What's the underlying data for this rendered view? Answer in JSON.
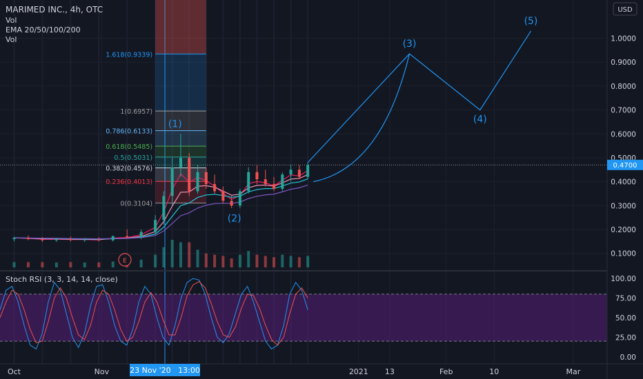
{
  "header": {
    "symbol_title": "MARIMED INC., 4h, OTC",
    "indicators": [
      "Vol",
      "EMA 20/50/100/200",
      "Vol"
    ],
    "currency": "USD"
  },
  "osc_title": "Stoch RSI (3, 3, 14, 14, close)",
  "colors": {
    "background": "#131722",
    "up": "#26a69a",
    "down": "#ef5350",
    "crosshair": "#2196f3",
    "price_tag": "#2196f3",
    "stoch_band": "#7b1fa2",
    "stoch_k": "#2196f3",
    "stoch_d": "#ef5350",
    "elliott": "#2196f3"
  },
  "price_tag": "0.4700",
  "date_tag": "23 Nov '20   13:00",
  "event_marker": "E",
  "chart_data": [
    {
      "type": "candlestick",
      "title": "MARIMED INC., 4h, OTC",
      "y_axis": {
        "ticks": [
          "1.0000",
          "0.9000",
          "0.8000",
          "0.7000",
          "0.6000",
          "0.5000",
          "0.4000",
          "0.3000",
          "0.2000",
          "0.1000"
        ],
        "tick_values": [
          1.0,
          0.9,
          0.8,
          0.7,
          0.6,
          0.5,
          0.4,
          0.3,
          0.2,
          0.1
        ],
        "range": [
          0.03,
          1.16
        ]
      },
      "x_axis": {
        "ticks": [
          "Oct",
          "Nov",
          "2021",
          "13",
          "Feb",
          "10",
          "Mar"
        ],
        "tick_days": [
          0,
          31,
          122,
          133,
          153,
          170,
          198
        ],
        "unit": "days from Oct 1 2020",
        "range": [
          -5,
          210
        ]
      },
      "last_price": 0.47,
      "fibonacci": [
        {
          "label": "1.618(0.9339)",
          "value": 0.9339,
          "color": "#2196f3"
        },
        {
          "label": "1(0.6957)",
          "value": 0.6957,
          "color": "#9e9e9e"
        },
        {
          "label": "0.786(0.6133)",
          "value": 0.6133,
          "color": "#64b5f6"
        },
        {
          "label": "0.618(0.5485)",
          "value": 0.5485,
          "color": "#4caf50"
        },
        {
          "label": "0.5(0.5031)",
          "value": 0.5031,
          "color": "#26a69a"
        },
        {
          "label": "0.382(0.4576)",
          "value": 0.4576,
          "color": "#d1d4dc"
        },
        {
          "label": "0.236(0.4013)",
          "value": 0.4013,
          "color": "#f23645"
        },
        {
          "label": "0(0.3104)",
          "value": 0.3104,
          "color": "#9e9e9e"
        }
      ],
      "elliott_waves": [
        {
          "label": "(1)",
          "day": 57,
          "price": 0.6
        },
        {
          "label": "(2)",
          "day": 78,
          "price": 0.285
        },
        {
          "label": "(3)",
          "day": 140,
          "price": 0.935
        },
        {
          "label": "(4)",
          "day": 165,
          "price": 0.7
        },
        {
          "label": "(5)",
          "day": 183,
          "price": 1.03
        }
      ],
      "ohlc": [
        {
          "day": 0,
          "o": 0.16,
          "h": 0.17,
          "l": 0.15,
          "c": 0.165
        },
        {
          "day": 5,
          "o": 0.165,
          "h": 0.175,
          "l": 0.155,
          "c": 0.16
        },
        {
          "day": 10,
          "o": 0.16,
          "h": 0.168,
          "l": 0.148,
          "c": 0.155
        },
        {
          "day": 15,
          "o": 0.155,
          "h": 0.165,
          "l": 0.148,
          "c": 0.16
        },
        {
          "day": 20,
          "o": 0.16,
          "h": 0.17,
          "l": 0.15,
          "c": 0.156
        },
        {
          "day": 25,
          "o": 0.156,
          "h": 0.165,
          "l": 0.148,
          "c": 0.158
        },
        {
          "day": 30,
          "o": 0.158,
          "h": 0.168,
          "l": 0.15,
          "c": 0.155
        },
        {
          "day": 35,
          "o": 0.155,
          "h": 0.175,
          "l": 0.15,
          "c": 0.172
        },
        {
          "day": 40,
          "o": 0.172,
          "h": 0.2,
          "l": 0.165,
          "c": 0.168
        },
        {
          "day": 45,
          "o": 0.168,
          "h": 0.2,
          "l": 0.16,
          "c": 0.19
        },
        {
          "day": 50,
          "o": 0.19,
          "h": 0.26,
          "l": 0.18,
          "c": 0.24
        },
        {
          "day": 53,
          "o": 0.24,
          "h": 0.36,
          "l": 0.22,
          "c": 0.34
        },
        {
          "day": 56,
          "o": 0.34,
          "h": 0.5,
          "l": 0.3,
          "c": 0.46
        },
        {
          "day": 59,
          "o": 0.46,
          "h": 0.6,
          "l": 0.42,
          "c": 0.5
        },
        {
          "day": 62,
          "o": 0.5,
          "h": 0.52,
          "l": 0.34,
          "c": 0.36
        },
        {
          "day": 65,
          "o": 0.36,
          "h": 0.47,
          "l": 0.35,
          "c": 0.44
        },
        {
          "day": 68,
          "o": 0.44,
          "h": 0.46,
          "l": 0.37,
          "c": 0.39
        },
        {
          "day": 71,
          "o": 0.39,
          "h": 0.43,
          "l": 0.35,
          "c": 0.36
        },
        {
          "day": 74,
          "o": 0.36,
          "h": 0.38,
          "l": 0.31,
          "c": 0.32
        },
        {
          "day": 77,
          "o": 0.32,
          "h": 0.34,
          "l": 0.29,
          "c": 0.3
        },
        {
          "day": 80,
          "o": 0.3,
          "h": 0.37,
          "l": 0.29,
          "c": 0.36
        },
        {
          "day": 83,
          "o": 0.36,
          "h": 0.46,
          "l": 0.35,
          "c": 0.44
        },
        {
          "day": 86,
          "o": 0.44,
          "h": 0.47,
          "l": 0.39,
          "c": 0.41
        },
        {
          "day": 89,
          "o": 0.41,
          "h": 0.45,
          "l": 0.38,
          "c": 0.39
        },
        {
          "day": 92,
          "o": 0.39,
          "h": 0.42,
          "l": 0.36,
          "c": 0.37
        },
        {
          "day": 95,
          "o": 0.37,
          "h": 0.44,
          "l": 0.36,
          "c": 0.43
        },
        {
          "day": 98,
          "o": 0.43,
          "h": 0.47,
          "l": 0.4,
          "c": 0.45
        },
        {
          "day": 101,
          "o": 0.45,
          "h": 0.47,
          "l": 0.41,
          "c": 0.42
        },
        {
          "day": 104,
          "o": 0.42,
          "h": 0.48,
          "l": 0.41,
          "c": 0.47
        }
      ]
    },
    {
      "type": "line",
      "title": "Stoch RSI (3, 3, 14, 14, close)",
      "y_axis": {
        "ticks": [
          "100.00",
          "75.00",
          "50.00",
          "25.00",
          "0.00"
        ],
        "tick_values": [
          100,
          75,
          50,
          25,
          0
        ],
        "range": [
          -8,
          108
        ]
      },
      "band": [
        20,
        80
      ],
      "series": [
        {
          "color": "#2196f3",
          "values": [
            60,
            85,
            90,
            70,
            40,
            15,
            10,
            30,
            70,
            95,
            85,
            55,
            25,
            12,
            30,
            65,
            90,
            92,
            70,
            40,
            20,
            15,
            35,
            70,
            90,
            80,
            50,
            25,
            15,
            40,
            75,
            95,
            100,
            98,
            80,
            50,
            25,
            18,
            30,
            55,
            80,
            90,
            70,
            45,
            20,
            10,
            15,
            40,
            80,
            95,
            85,
            60
          ]
        },
        {
          "color": "#ef5350",
          "values": [
            50,
            70,
            85,
            80,
            60,
            35,
            18,
            20,
            45,
            75,
            88,
            75,
            50,
            28,
            22,
            40,
            70,
            85,
            80,
            60,
            35,
            20,
            25,
            45,
            70,
            82,
            70,
            48,
            28,
            28,
            50,
            78,
            92,
            96,
            88,
            68,
            45,
            28,
            25,
            38,
            62,
            80,
            78,
            62,
            40,
            22,
            15,
            25,
            55,
            80,
            88,
            75
          ]
        }
      ]
    }
  ]
}
